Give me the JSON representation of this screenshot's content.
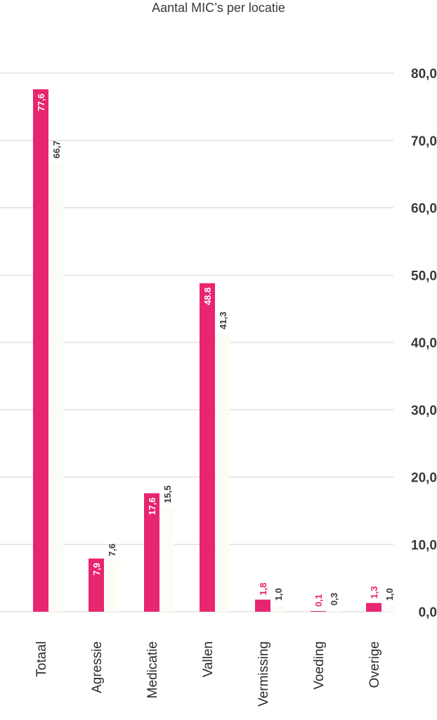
{
  "chart_data": {
    "type": "bar",
    "title": "Aantal MIC’s per locatie",
    "xlabel": "",
    "ylabel": "",
    "ylim": [
      0,
      80
    ],
    "yticks": [
      "0,0",
      "10,0",
      "20,0",
      "30,0",
      "40,0",
      "50,0",
      "60,0",
      "70,0",
      "80,0"
    ],
    "categories": [
      "Totaal",
      "Agressie",
      "Medicatie",
      "Vallen",
      "Vermissing",
      "Voeding",
      "Overige"
    ],
    "series": [
      {
        "values": [
          77.6,
          7.9,
          17.6,
          48.8,
          1.8,
          0.1,
          1.3
        ],
        "labels": [
          "77,6",
          "7,9",
          "17,6",
          "48.8",
          "1,8",
          "0,1",
          "1,3"
        ],
        "color": "#e8256f"
      },
      {
        "values": [
          66.7,
          7.6,
          15.5,
          41.3,
          1.0,
          0.3,
          1.0
        ],
        "labels": [
          "66,7",
          "7,6",
          "15,5",
          "41,3",
          "1,0",
          "0,3",
          "1,0"
        ],
        "color": "#fdfdf8"
      }
    ],
    "grid": true
  }
}
